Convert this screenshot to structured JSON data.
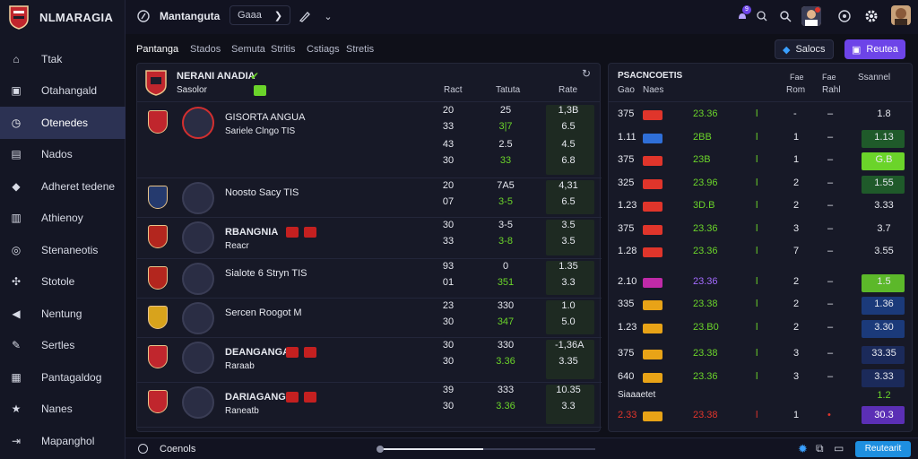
{
  "app": {
    "name": "NLMARAGIA"
  },
  "sidebar": {
    "items": [
      {
        "label": "Ttak",
        "icon": "home-icon"
      },
      {
        "label": "Otahangald",
        "icon": "monitor-icon"
      },
      {
        "label": "Otenedes",
        "icon": "clock-icon",
        "active": true
      },
      {
        "label": "Nados",
        "icon": "calendar-icon"
      },
      {
        "label": "Adheret tedene",
        "icon": "tag-icon"
      },
      {
        "label": "Athienoy",
        "icon": "building-icon"
      },
      {
        "label": "Stenaneotis",
        "icon": "globe-icon"
      },
      {
        "label": "Stotole",
        "icon": "puzzle-icon"
      },
      {
        "label": "Nentung",
        "icon": "megaphone-icon"
      },
      {
        "label": "Sertles",
        "icon": "wrench-icon"
      },
      {
        "label": "Pantagaldog",
        "icon": "grid-icon"
      },
      {
        "label": "Nanes",
        "icon": "trophy-icon"
      },
      {
        "label": "Mapanghol",
        "icon": "exit-icon"
      }
    ]
  },
  "topbar": {
    "title": "Mantanguta",
    "search_label": "Gaaa",
    "notification_count": "9"
  },
  "tabs": [
    "Pantanga",
    "Stados",
    "Semuta",
    "Stritis",
    "Cstiags",
    "Stretis"
  ],
  "filters": {
    "left_label": "Salocs",
    "right_label": "Reutea"
  },
  "left_panel": {
    "header": {
      "title": "NERANI ANADIA",
      "subtitle": "Sasolor",
      "col1": "Ract",
      "col2": "Tatuta",
      "col3": "Rate"
    },
    "rows": [
      {
        "name": "GISORTA ANGUA",
        "sub": "Sariele Clngo TIS",
        "a1": "20",
        "a2": "33",
        "b1": "25",
        "b2": "3|7",
        "c1": "1,3B",
        "c2": "6.5",
        "line2a": "43",
        "line2b": "30",
        "b3": "2.5",
        "b4": "33",
        "c3": "4.5",
        "c4": "6.8",
        "chip_colors": [],
        "team_colors": [
          "#c0262d",
          "#d22f2f"
        ]
      },
      {
        "name": "Noosto Sacy TIS",
        "sub": "",
        "a1": "20",
        "a2": "07",
        "b1": "7A5",
        "b2": "3-5",
        "c1": "4,31",
        "c2": "6.5",
        "chip_colors": [],
        "team_colors": [
          "#253a6e"
        ]
      },
      {
        "name": "RBANGNIA",
        "sub": "Reacr",
        "a1": "30",
        "a2": "33",
        "b1": "3-5",
        "b2": "3-8",
        "c1": "3.5",
        "c2": "3.5",
        "chip_colors": [
          "#c42020",
          "#c42020"
        ],
        "team_colors": [
          "#b3261e"
        ]
      },
      {
        "name": "Sialote 6 Stryn TIS",
        "sub": "",
        "a1": "93",
        "a2": "01",
        "b1": "0",
        "b2": "351",
        "c1": "1.35",
        "c2": "3.3",
        "chip_colors": [],
        "team_colors": [
          "#b3261e"
        ]
      },
      {
        "name": "Sercen Roogot M",
        "sub": "",
        "a1": "23",
        "a2": "30",
        "b1": "330",
        "b2": "347",
        "c1": "1.0",
        "c2": "5.0",
        "chip_colors": [],
        "team_colors": [
          "#d8a31c"
        ]
      },
      {
        "name": "DEANGANGA",
        "sub": "Raraab",
        "a1": "30",
        "a2": "30",
        "b1": "330",
        "b2": "3.36",
        "c1": "-1,36A",
        "c2": "3.35",
        "chip_colors": [
          "#c42020",
          "#c42020"
        ],
        "team_colors": [
          "#c0262d"
        ]
      },
      {
        "name": "DARIAGANGA",
        "sub": "Raneatb",
        "a1": "39",
        "a2": "30",
        "b1": "333",
        "b2": "3.36",
        "c1": "10.35",
        "c2": "3.3",
        "chip_colors": [
          "#c42020",
          "#c42020"
        ],
        "team_colors": [
          "#c0262d"
        ]
      }
    ]
  },
  "right_panel": {
    "header": {
      "title": "PSACNCOETIS",
      "sub1": "Gao",
      "sub2": "Naes",
      "c3a": "Fae",
      "c3b": "Rom",
      "c4a": "Fae",
      "c4b": "Rahl",
      "c5": "Ssannel"
    },
    "rows": [
      {
        "n": "375",
        "chip": "#e0352b",
        "v": "23.36",
        "mark": "l",
        "d": "-",
        "e": "1.8",
        "box": ""
      },
      {
        "n": "1.11",
        "chip": "#2f6fd8",
        "v": "2BB",
        "mark": "l",
        "d": "1",
        "e": "1.13",
        "box": "#1f5a2a"
      },
      {
        "n": "375",
        "chip": "#e0352b",
        "v": "23B",
        "mark": "l",
        "d": "1",
        "e": "G.B",
        "box": "#6bd42a"
      },
      {
        "n": "325",
        "chip": "#e0352b",
        "v": "23.96",
        "mark": "l",
        "d": "2",
        "e": "1.55",
        "box": "#1f5a2a"
      },
      {
        "n": "1.23",
        "chip": "#e0352b",
        "v": "3D.B",
        "mark": "l",
        "d": "2",
        "e": "3.33",
        "box": ""
      },
      {
        "n": "375",
        "chip": "#e0352b",
        "v": "23.36",
        "mark": "l",
        "d": "3",
        "e": "3.7",
        "box": ""
      },
      {
        "n": "1.28",
        "chip": "#e0352b",
        "v": "23.36",
        "mark": "l",
        "d": "7",
        "e": "3.55",
        "box": ""
      },
      {
        "n": "2.10",
        "chip": "#c02aa8",
        "v": "23.36",
        "mark": "l",
        "d": "2",
        "e": "1.5",
        "box": "#5cb82a"
      },
      {
        "n": "335",
        "chip": "#e8a317",
        "v": "23.38",
        "mark": "l",
        "d": "2",
        "e": "1.36",
        "box": "#1b3a7a"
      },
      {
        "n": "1.23",
        "chip": "#e8a317",
        "v": "23.B0",
        "mark": "l",
        "d": "2",
        "e": "3.30",
        "box": "#1b3a7a"
      },
      {
        "n": "375",
        "chip": "#e8a317",
        "v": "23.38",
        "mark": "l",
        "d": "3",
        "e": "33.35",
        "box": "#1b2a5a"
      },
      {
        "n": "640",
        "chip": "#e8a317",
        "v": "23.36",
        "mark": "l",
        "d": "3",
        "e": "3.33",
        "box": "#1b2a5a"
      }
    ],
    "footer": {
      "label": "Siaaaetet",
      "n": "2.33",
      "chip": "#e8a317",
      "v": "23.38",
      "mark": "l",
      "d": "1",
      "e1": "1.2",
      "e2": "30.3",
      "box": "#5b2fb5"
    }
  },
  "status": {
    "label": "Coenols",
    "right_button": "Reutearit"
  },
  "colors": {
    "accent": "#6d44e8",
    "positive": "#6bd42a",
    "negative": "#e0352b",
    "blue": "#3aa0ff"
  }
}
